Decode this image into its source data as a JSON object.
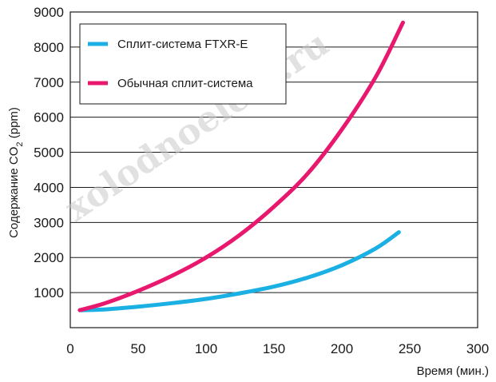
{
  "chart_data": {
    "type": "line",
    "xlabel": "Время (мин.)",
    "ylabel_main": "Содержание CO",
    "ylabel_sub": "2",
    "ylabel_tail": " (ppm)",
    "xlim": [
      0,
      300
    ],
    "ylim": [
      0,
      9000
    ],
    "x_ticks": [
      0,
      50,
      100,
      150,
      200,
      250,
      300
    ],
    "y_ticks": [
      1000,
      2000,
      3000,
      4000,
      5000,
      6000,
      7000,
      8000,
      9000
    ],
    "grid": "horizontal",
    "legend_position": "top-left",
    "watermark": "xolodnoeleto.ru",
    "series": [
      {
        "name": "Сплит-система FTXR-E",
        "color": "#1bb0e4",
        "x": [
          7,
          25,
          50,
          75,
          100,
          125,
          150,
          175,
          200,
          225,
          242
        ],
        "y": [
          500,
          520,
          600,
          700,
          820,
          980,
          1170,
          1430,
          1780,
          2260,
          2720
        ]
      },
      {
        "name": "Обычная сплит-система",
        "color": "#e8186e",
        "x": [
          7,
          25,
          50,
          75,
          100,
          125,
          150,
          175,
          200,
          225,
          245
        ],
        "y": [
          500,
          690,
          1050,
          1480,
          2000,
          2650,
          3450,
          4400,
          5650,
          7150,
          8700
        ]
      }
    ]
  }
}
